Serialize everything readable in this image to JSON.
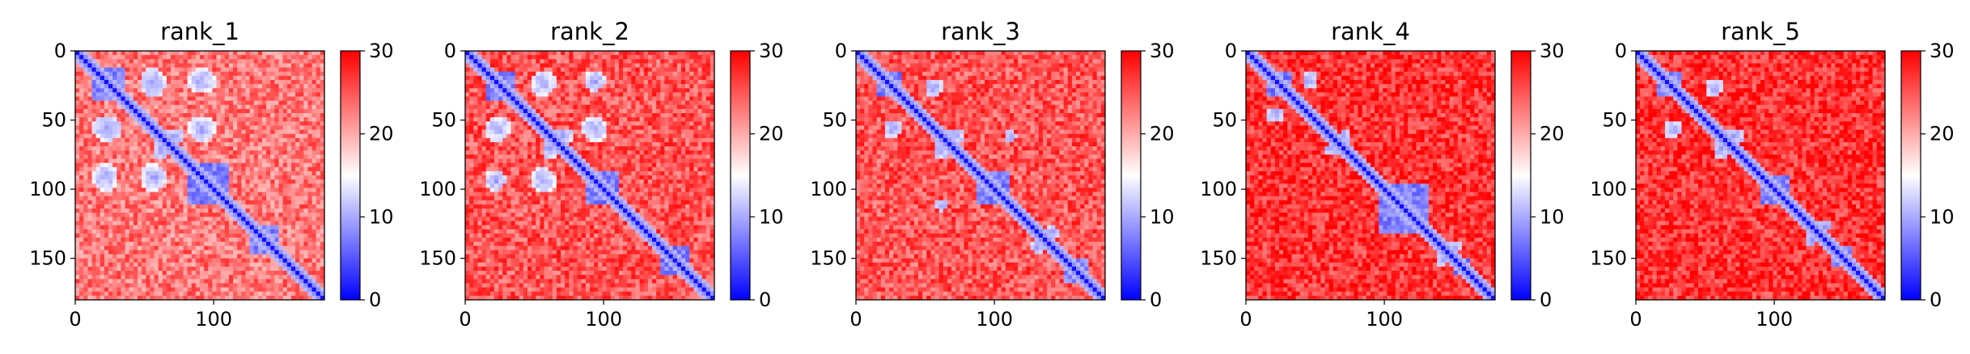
{
  "chart_data": [
    {
      "type": "heatmap",
      "title": "rank_1",
      "matrix_size": 180,
      "x_ticks": [
        0,
        100
      ],
      "y_ticks": [
        0,
        50,
        100,
        150
      ],
      "xlim": [
        0,
        180
      ],
      "ylim": [
        180,
        0
      ],
      "colorbar": {
        "range": [
          0,
          30
        ],
        "ticks": [
          0,
          10,
          20,
          30
        ],
        "colormap": "bwr"
      },
      "diagonal_blocks": [
        [
          10,
          35
        ],
        [
          80,
          110
        ],
        [
          125,
          145
        ]
      ],
      "offdiag_contacts": [
        [
          20,
          90,
          10
        ],
        [
          55,
          90,
          10
        ],
        [
          55,
          20,
          9
        ],
        [
          25,
          55,
          8
        ],
        [
          70,
          60,
          6
        ],
        [
          140,
          130,
          5
        ]
      ],
      "bg_level": 23
    },
    {
      "type": "heatmap",
      "title": "rank_2",
      "matrix_size": 180,
      "x_ticks": [
        0,
        100
      ],
      "y_ticks": [
        0,
        50,
        100,
        150
      ],
      "xlim": [
        0,
        180
      ],
      "ylim": [
        180,
        0
      ],
      "colorbar": {
        "range": [
          0,
          30
        ],
        "ticks": [
          0,
          10,
          20,
          30
        ],
        "colormap": "bwr"
      },
      "diagonal_blocks": [
        [
          15,
          35
        ],
        [
          85,
          110
        ],
        [
          140,
          160
        ]
      ],
      "offdiag_contacts": [
        [
          20,
          92,
          8
        ],
        [
          55,
          92,
          9
        ],
        [
          55,
          22,
          9
        ],
        [
          70,
          60,
          6
        ]
      ],
      "bg_level": 25
    },
    {
      "type": "heatmap",
      "title": "rank_3",
      "matrix_size": 180,
      "x_ticks": [
        0,
        100
      ],
      "y_ticks": [
        0,
        50,
        100,
        150
      ],
      "xlim": [
        0,
        180
      ],
      "ylim": [
        180,
        0
      ],
      "colorbar": {
        "range": [
          0,
          30
        ],
        "ticks": [
          0,
          10,
          20,
          30
        ],
        "colormap": "bwr"
      },
      "diagonal_blocks": [
        [
          15,
          30
        ],
        [
          85,
          110
        ],
        [
          150,
          165
        ]
      ],
      "offdiag_contacts": [
        [
          55,
          25,
          7
        ],
        [
          70,
          60,
          6
        ],
        [
          140,
          130,
          5
        ],
        [
          110,
          60,
          5
        ]
      ],
      "bg_level": 25
    },
    {
      "type": "heatmap",
      "title": "rank_4",
      "matrix_size": 180,
      "x_ticks": [
        0,
        100
      ],
      "y_ticks": [
        0,
        50,
        100,
        150
      ],
      "xlim": [
        0,
        180
      ],
      "ylim": [
        180,
        0
      ],
      "colorbar": {
        "range": [
          0,
          30
        ],
        "ticks": [
          0,
          10,
          20,
          30
        ],
        "colormap": "bwr"
      },
      "diagonal_blocks": [
        [
          15,
          30
        ],
        [
          95,
          130
        ],
        [
          150,
          160
        ]
      ],
      "offdiag_contacts": [
        [
          45,
          20,
          6
        ],
        [
          70,
          60,
          5
        ],
        [
          140,
          150,
          5
        ]
      ],
      "bg_level": 27
    },
    {
      "type": "heatmap",
      "title": "rank_5",
      "matrix_size": 180,
      "x_ticks": [
        0,
        100
      ],
      "y_ticks": [
        0,
        50,
        100,
        150
      ],
      "xlim": [
        0,
        180
      ],
      "ylim": [
        180,
        0
      ],
      "colorbar": {
        "range": [
          0,
          30
        ],
        "ticks": [
          0,
          10,
          20,
          30
        ],
        "colormap": "bwr"
      },
      "diagonal_blocks": [
        [
          15,
          30
        ],
        [
          90,
          110
        ],
        [
          140,
          155
        ]
      ],
      "offdiag_contacts": [
        [
          55,
          25,
          7
        ],
        [
          70,
          60,
          6
        ],
        [
          135,
          125,
          4
        ]
      ],
      "bg_level": 27
    }
  ],
  "colors": {
    "low": "#0000ff",
    "mid": "#ffffff",
    "high": "#ff0000"
  }
}
